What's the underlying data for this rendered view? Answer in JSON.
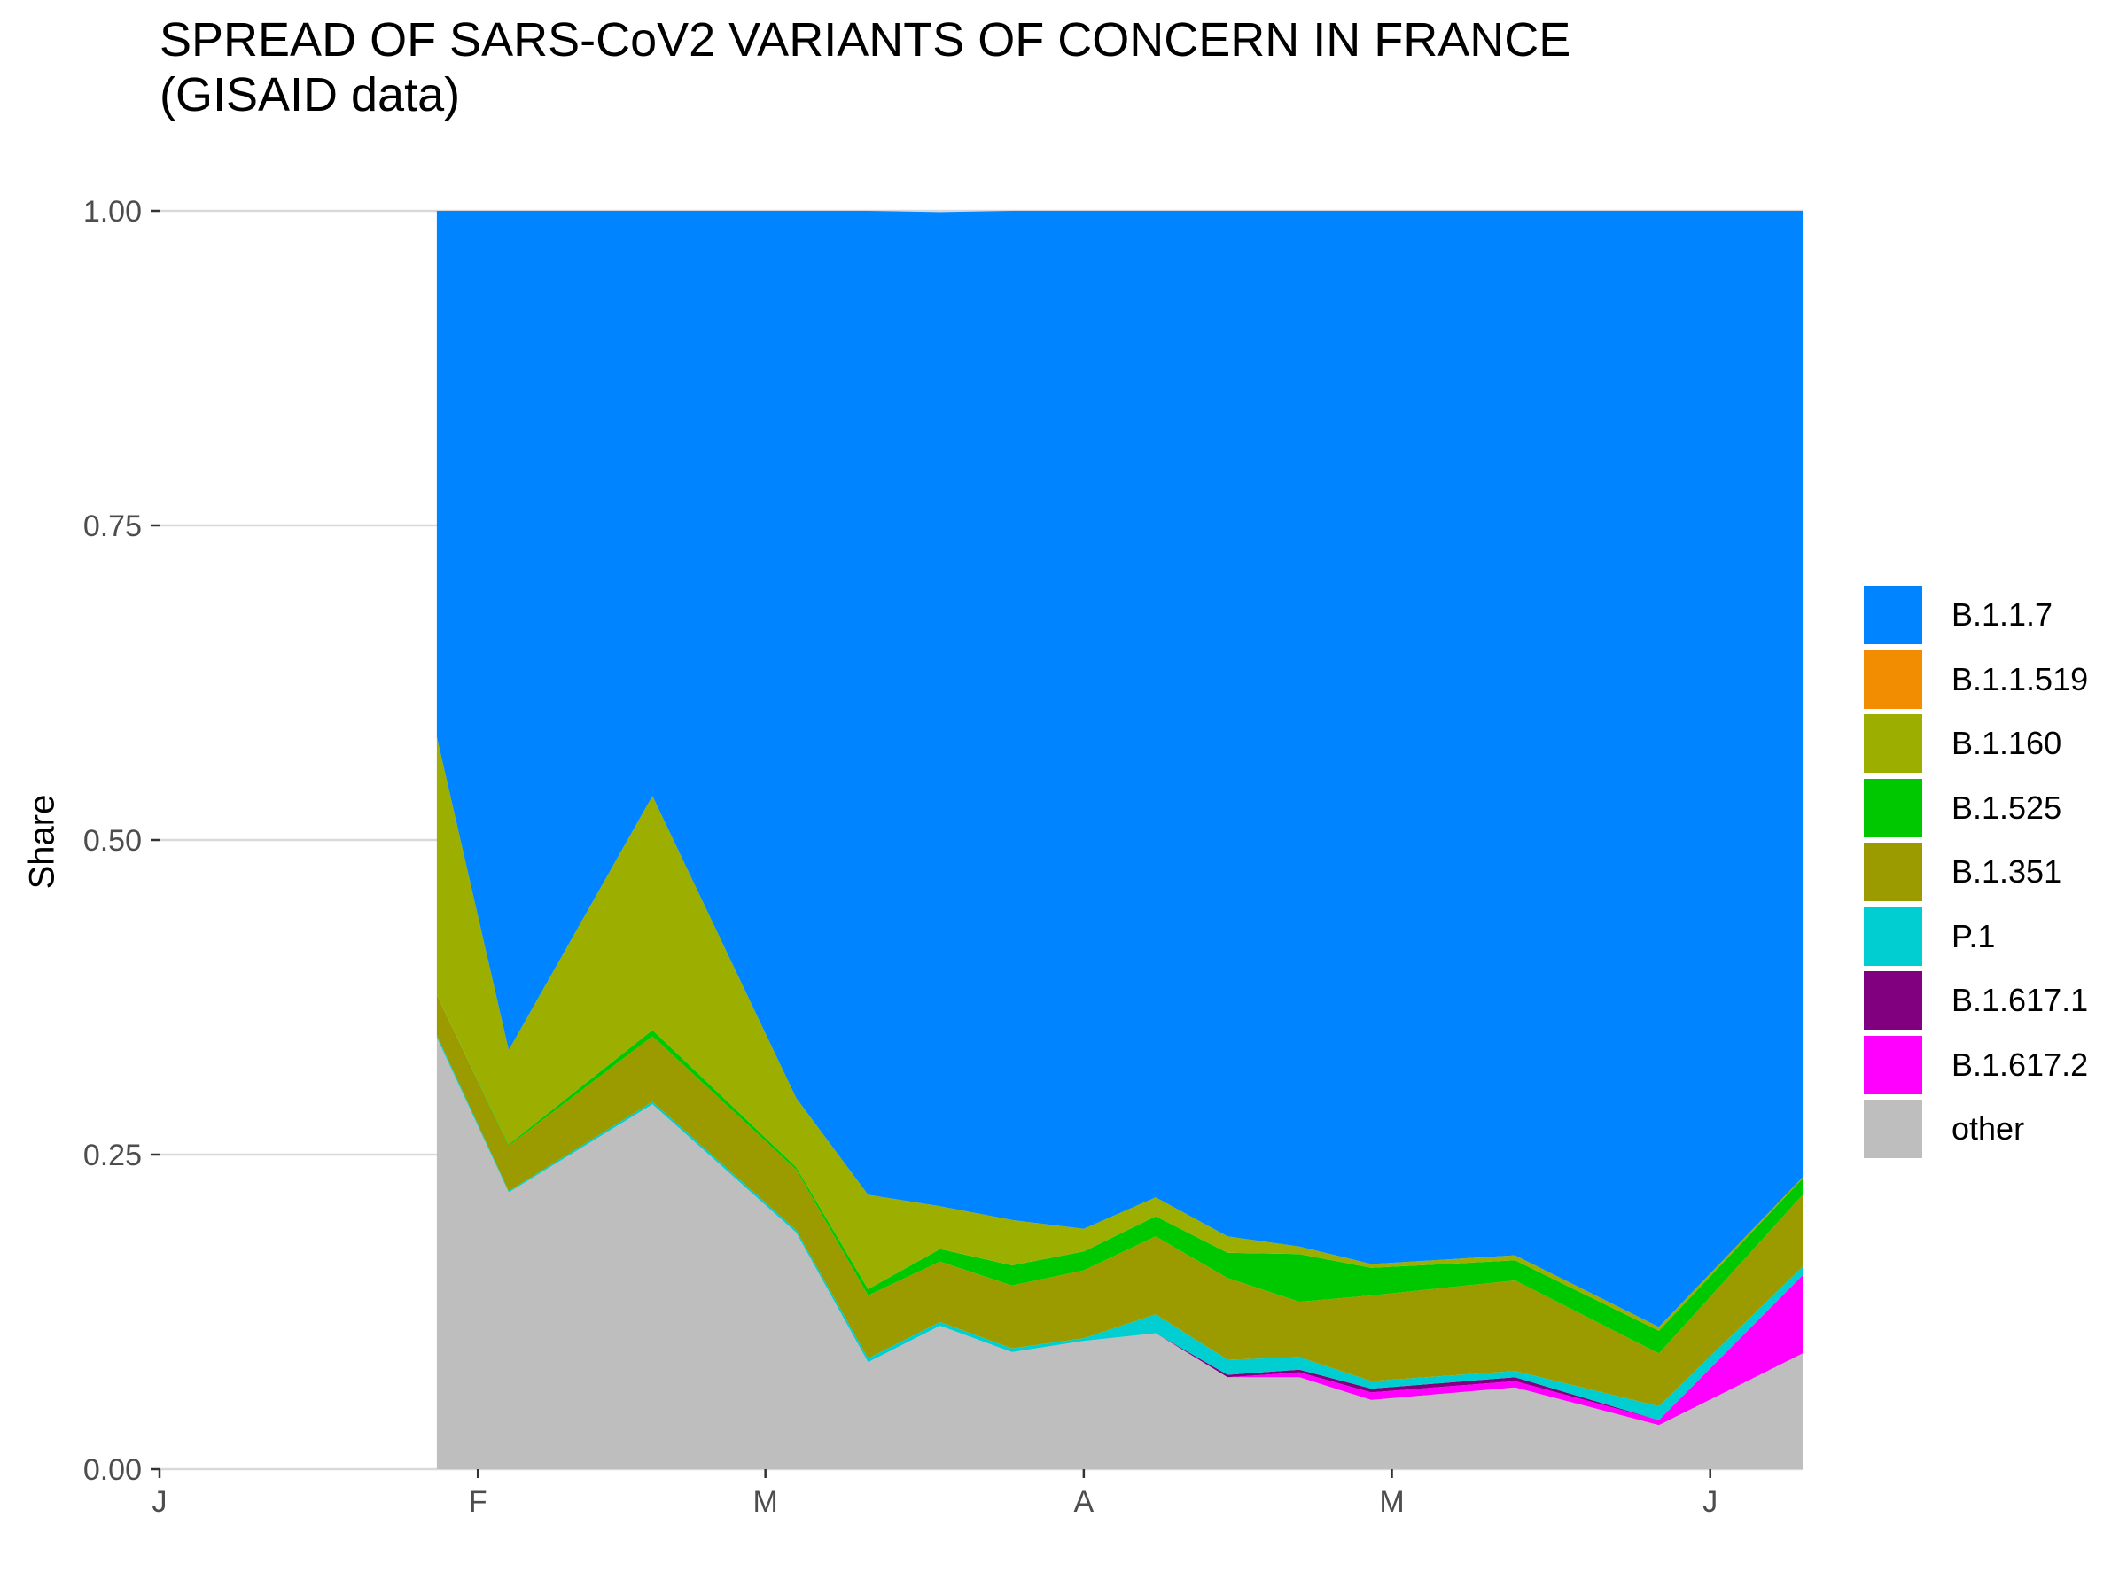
{
  "title_line1": "SPREAD OF SARS-CoV2 VARIANTS OF CONCERN IN FRANCE",
  "title_line2": "(GISAID data)",
  "chart_data": {
    "type": "area",
    "stacked": true,
    "title": "SPREAD OF SARS-CoV2 VARIANTS OF CONCERN IN FRANCE\n(GISAID data)",
    "xlabel": "",
    "ylabel": "Share",
    "ylim": [
      0,
      1
    ],
    "yticks": [
      0.0,
      0.25,
      0.5,
      0.75,
      1.0
    ],
    "ytick_labels": [
      "0.00",
      "0.25",
      "0.50",
      "0.75",
      "1.00"
    ],
    "xticks": [
      "2021-01-01",
      "2021-02-01",
      "2021-03-01",
      "2021-04-01",
      "2021-05-01",
      "2021-06-01"
    ],
    "xtick_labels": [
      "J",
      "F",
      "M",
      "A",
      "M",
      "J"
    ],
    "xlim": [
      "2021-01-01",
      "2021-06-10"
    ],
    "grid": "horizontal major lines",
    "legend_position": "right",
    "x": [
      "2021-01-28",
      "2021-02-04",
      "2021-02-18",
      "2021-03-04",
      "2021-03-11",
      "2021-03-18",
      "2021-03-25",
      "2021-04-01",
      "2021-04-08",
      "2021-04-15",
      "2021-04-22",
      "2021-04-29",
      "2021-05-13",
      "2021-05-27",
      "2021-06-10"
    ],
    "series": [
      {
        "name": "other",
        "color": "#BEBEBE",
        "values": [
          0.343,
          0.22,
          0.29,
          0.188,
          0.085,
          0.114,
          0.093,
          0.102,
          0.108,
          0.073,
          0.073,
          0.055,
          0.065,
          0.035,
          0.092
        ]
      },
      {
        "name": "B.1.617.2",
        "color": "#FF00FF",
        "values": [
          0.0,
          0.0,
          0.0,
          0.0,
          0.0,
          0.0,
          0.0,
          0.0,
          0.0,
          0.0,
          0.004,
          0.006,
          0.005,
          0.004,
          0.062
        ]
      },
      {
        "name": "B.1.617.1",
        "color": "#800080",
        "values": [
          0.0,
          0.0,
          0.0,
          0.0,
          0.0,
          0.0,
          0.0,
          0.0,
          0.0,
          0.002,
          0.002,
          0.003,
          0.003,
          0.0,
          0.0
        ]
      },
      {
        "name": "P.1",
        "color": "#00CED1",
        "values": [
          0.002,
          0.001,
          0.002,
          0.002,
          0.003,
          0.003,
          0.003,
          0.002,
          0.015,
          0.012,
          0.01,
          0.006,
          0.005,
          0.011,
          0.007
        ]
      },
      {
        "name": "B.1.351",
        "color": "#9B9B00",
        "values": [
          0.032,
          0.036,
          0.052,
          0.048,
          0.05,
          0.048,
          0.05,
          0.054,
          0.062,
          0.065,
          0.044,
          0.068,
          0.072,
          0.042,
          0.057
        ]
      },
      {
        "name": "B.1.525",
        "color": "#00C800",
        "values": [
          0.0,
          0.001,
          0.005,
          0.002,
          0.005,
          0.01,
          0.016,
          0.015,
          0.016,
          0.02,
          0.038,
          0.022,
          0.016,
          0.018,
          0.013
        ]
      },
      {
        "name": "B.1.160",
        "color": "#9CAF00",
        "values": [
          0.205,
          0.075,
          0.186,
          0.055,
          0.075,
          0.034,
          0.036,
          0.018,
          0.015,
          0.013,
          0.006,
          0.003,
          0.004,
          0.003,
          0.001
        ]
      },
      {
        "name": "B.1.1.519",
        "color": "#F28C00",
        "values": [
          0.0,
          0.0,
          0.0,
          0.0,
          0.0,
          0.0,
          0.0,
          0.0,
          0.0,
          0.0,
          0.0,
          0.0,
          0.0,
          0.0,
          0.0
        ]
      },
      {
        "name": "B.1.1.7",
        "color": "#0084FF",
        "values": [
          0.418,
          0.667,
          0.465,
          0.705,
          0.782,
          0.79,
          0.802,
          0.809,
          0.784,
          0.815,
          0.823,
          0.837,
          0.83,
          0.887,
          0.768
        ]
      }
    ],
    "legend_order": [
      "B.1.1.7",
      "B.1.1.519",
      "B.1.160",
      "B.1.525",
      "B.1.351",
      "P.1",
      "B.1.617.1",
      "B.1.617.2",
      "other"
    ]
  }
}
